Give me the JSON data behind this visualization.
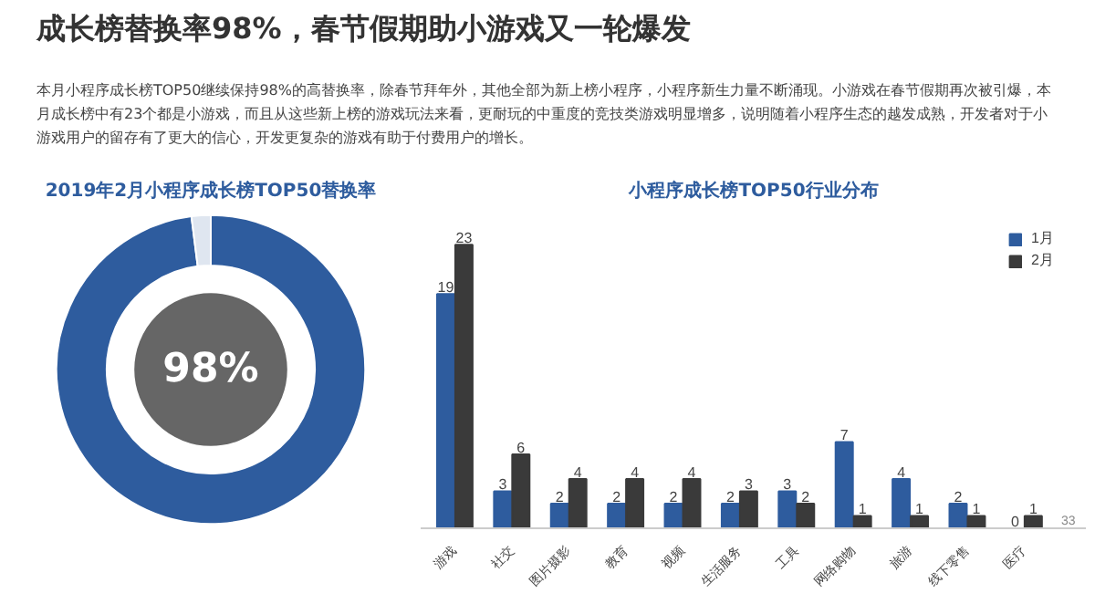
{
  "chart_data": [
    {
      "type": "donut",
      "title": "成长榜替换率98%，春节假期助小游戏又一轮爆发",
      "subtitle": "2019年2月小程序成长榜TOP50替换率",
      "categories": [
        null,
        null
      ],
      "values": [
        98,
        2
      ],
      "colors": [
        "#2e5c9e",
        "#dfe6f0"
      ],
      "annotations": [
        "本月小程序成长榜TOP50继续保持98%的高替换率，除春节拜年外，其他全部为新上榜小程序，小程序新生力量不断涌现。小游戏在春节假期再次被引爆，本月成长榜中有23个都是小游戏，而且从这些新上榜的游戏玩法来看，更耐玩的中重度的竞技类游戏明显增多，说明随着小程序生态的越发成熟，开发者对于小游戏用户的留存有了更大的信心，开发更复杂的游戏有助于付费用户的增长。",
        "98%"
      ]
    },
    {
      "type": "bar",
      "title": "小程序成长榜TOP50行业分布",
      "categories": [
        "游戏",
        "社交",
        "图片摄影",
        "教育",
        "视频",
        "生活服务",
        "工具",
        "网络购物",
        "旅游",
        "线下零售",
        "医疗"
      ],
      "series": [
        {
          "name": "1月",
          "color": "#2e5c9e",
          "values": [
            19,
            3,
            2,
            2,
            2,
            2,
            3,
            7,
            4,
            2,
            0
          ]
        },
        {
          "name": "2月",
          "color": "#3a3a3a",
          "values": [
            23,
            6,
            4,
            4,
            4,
            3,
            2,
            1,
            1,
            1,
            1
          ]
        }
      ],
      "data_labels": true,
      "legend": "top right",
      "annotations": [
        "33"
      ]
    }
  ]
}
